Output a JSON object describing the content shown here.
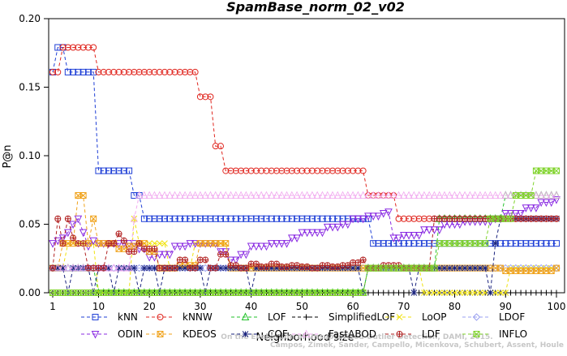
{
  "chart_data": {
    "type": "line",
    "title": "SpamBase_norm_02_v02",
    "xlabel": "Neighborhood size",
    "ylabel": "P@n",
    "xlim": [
      1,
      100
    ],
    "ylim": [
      0,
      0.2
    ],
    "xticks": [
      1,
      10,
      20,
      30,
      40,
      50,
      60,
      70,
      80,
      90,
      100
    ],
    "yticks": [
      0.0,
      0.05,
      0.1,
      0.15,
      0.2
    ],
    "ytick_labels": [
      "0.00",
      "0.05",
      "0.10",
      "0.15",
      "0.20"
    ],
    "grid": false,
    "legend_position": "bottom",
    "watermark": [
      "Campos, Zimek, Sander, Campello, Micenkova, Schubert, Assent, Houle",
      "On the Evaluation of Unsupervised Outlier Detection, DAMI, 2015."
    ],
    "series": [
      {
        "name": "kNN",
        "color": "#1f3fd6",
        "marker": "square",
        "points": [
          [
            1,
            0.161
          ],
          [
            2,
            0.179
          ],
          [
            3,
            0.179
          ],
          [
            4,
            0.161
          ],
          [
            8,
            0.161
          ],
          [
            9,
            0.161
          ],
          [
            10,
            0.089
          ],
          [
            16,
            0.089
          ],
          [
            17,
            0.071
          ],
          [
            18,
            0.071
          ],
          [
            19,
            0.054
          ],
          [
            63,
            0.054
          ],
          [
            64,
            0.036
          ],
          [
            100,
            0.036
          ]
        ]
      },
      {
        "name": "kNNW",
        "color": "#e0261f",
        "marker": "circle",
        "points": [
          [
            1,
            0.161
          ],
          [
            2,
            0.161
          ],
          [
            3,
            0.179
          ],
          [
            9,
            0.179
          ],
          [
            10,
            0.161
          ],
          [
            29,
            0.161
          ],
          [
            30,
            0.143
          ],
          [
            32,
            0.143
          ],
          [
            33,
            0.107
          ],
          [
            34,
            0.107
          ],
          [
            35,
            0.089
          ],
          [
            62,
            0.089
          ],
          [
            63,
            0.071
          ],
          [
            68,
            0.071
          ],
          [
            69,
            0.054
          ],
          [
            100,
            0.054
          ]
        ]
      },
      {
        "name": "LOF",
        "color": "#22c22a",
        "marker": "triangle-up",
        "points": [
          [
            1,
            0.018
          ],
          [
            9,
            0.018
          ],
          [
            10,
            0.0
          ],
          [
            62,
            0.0
          ],
          [
            63,
            0.018
          ],
          [
            76,
            0.018
          ],
          [
            77,
            0.054
          ],
          [
            89,
            0.054
          ],
          [
            90,
            0.071
          ],
          [
            100,
            0.071
          ]
        ]
      },
      {
        "name": "SimplifiedLOF",
        "color": "#000000",
        "marker": "plus",
        "points": [
          [
            1,
            0.0
          ],
          [
            100,
            0.0
          ]
        ]
      },
      {
        "name": "LoOP",
        "color": "#f0e20a",
        "marker": "x",
        "points": [
          [
            1,
            0.018
          ],
          [
            3,
            0.018
          ],
          [
            4,
            0.036
          ],
          [
            8,
            0.036
          ],
          [
            10,
            0.0
          ],
          [
            16,
            0.0
          ],
          [
            17,
            0.054
          ],
          [
            18,
            0.036
          ],
          [
            23,
            0.036
          ],
          [
            24,
            0.018
          ],
          [
            28,
            0.018
          ],
          [
            29,
            0.036
          ],
          [
            35,
            0.036
          ],
          [
            36,
            0.018
          ],
          [
            64,
            0.018
          ],
          [
            74,
            0.0
          ],
          [
            90,
            0.0
          ],
          [
            91,
            0.018
          ],
          [
            100,
            0.018
          ]
        ]
      },
      {
        "name": "LDOF",
        "color": "#9aa0f0",
        "marker": "diamond",
        "points": [
          [
            1,
            0.018
          ],
          [
            100,
            0.018
          ]
        ]
      },
      {
        "name": "ODIN",
        "color": "#8a2be2",
        "marker": "triangle-down",
        "points": [
          [
            1,
            0.036
          ],
          [
            2,
            0.038
          ],
          [
            3,
            0.04
          ],
          [
            4,
            0.044
          ],
          [
            5,
            0.05
          ],
          [
            6,
            0.054
          ],
          [
            7,
            0.044
          ],
          [
            8,
            0.034
          ],
          [
            9,
            0.038
          ],
          [
            10,
            0.036
          ],
          [
            15,
            0.036
          ],
          [
            18,
            0.032
          ],
          [
            20,
            0.026
          ],
          [
            22,
            0.028
          ],
          [
            25,
            0.034
          ],
          [
            28,
            0.036
          ],
          [
            30,
            0.036
          ],
          [
            32,
            0.036
          ],
          [
            34,
            0.03
          ],
          [
            36,
            0.024
          ],
          [
            37,
            0.024
          ],
          [
            38,
            0.028
          ],
          [
            40,
            0.034
          ],
          [
            44,
            0.036
          ],
          [
            48,
            0.04
          ],
          [
            50,
            0.044
          ],
          [
            55,
            0.048
          ],
          [
            58,
            0.05
          ],
          [
            60,
            0.054
          ],
          [
            63,
            0.056
          ],
          [
            66,
            0.058
          ],
          [
            67,
            0.059
          ],
          [
            68,
            0.04
          ],
          [
            70,
            0.042
          ],
          [
            74,
            0.046
          ],
          [
            78,
            0.05
          ],
          [
            82,
            0.052
          ],
          [
            88,
            0.054
          ],
          [
            90,
            0.058
          ],
          [
            94,
            0.062
          ],
          [
            97,
            0.066
          ],
          [
            100,
            0.068
          ]
        ]
      },
      {
        "name": "KDEOS",
        "color": "#f0a21a",
        "marker": "square-x",
        "points": [
          [
            1,
            0.018
          ],
          [
            3,
            0.036
          ],
          [
            5,
            0.036
          ],
          [
            6,
            0.071
          ],
          [
            7,
            0.071
          ],
          [
            8,
            0.036
          ],
          [
            9,
            0.054
          ],
          [
            10,
            0.036
          ],
          [
            12,
            0.036
          ],
          [
            14,
            0.032
          ],
          [
            16,
            0.034
          ],
          [
            18,
            0.036
          ],
          [
            20,
            0.03
          ],
          [
            22,
            0.018
          ],
          [
            24,
            0.018
          ],
          [
            26,
            0.02
          ],
          [
            30,
            0.036
          ],
          [
            34,
            0.036
          ],
          [
            36,
            0.018
          ],
          [
            60,
            0.018
          ],
          [
            63,
            0.018
          ],
          [
            70,
            0.018
          ],
          [
            80,
            0.018
          ],
          [
            86,
            0.018
          ],
          [
            90,
            0.016
          ],
          [
            100,
            0.018
          ]
        ]
      },
      {
        "name": "COF",
        "color": "#1a237e",
        "marker": "star",
        "points": [
          [
            1,
            0.018
          ],
          [
            3,
            0.018
          ],
          [
            4,
            0.0
          ],
          [
            5,
            0.018
          ],
          [
            8,
            0.018
          ],
          [
            9,
            0.0
          ],
          [
            10,
            0.018
          ],
          [
            12,
            0.018
          ],
          [
            13,
            0.0
          ],
          [
            14,
            0.018
          ],
          [
            17,
            0.018
          ],
          [
            18,
            0.0
          ],
          [
            19,
            0.018
          ],
          [
            21,
            0.018
          ],
          [
            22,
            0.0
          ],
          [
            23,
            0.018
          ],
          [
            30,
            0.018
          ],
          [
            31,
            0.0
          ],
          [
            32,
            0.018
          ],
          [
            38,
            0.018
          ],
          [
            40,
            0.0
          ],
          [
            41,
            0.018
          ],
          [
            60,
            0.018
          ],
          [
            62,
            0.0
          ],
          [
            63,
            0.018
          ],
          [
            70,
            0.018
          ],
          [
            72,
            0.0
          ],
          [
            73,
            0.018
          ],
          [
            86,
            0.018
          ],
          [
            87,
            0.0
          ],
          [
            88,
            0.036
          ],
          [
            89,
            0.054
          ],
          [
            100,
            0.054
          ]
        ]
      },
      {
        "name": "FastABOD",
        "color": "#f1a8ef",
        "marker": "triangle-open",
        "points": [
          [
            1,
            0.018
          ],
          [
            16,
            0.018
          ],
          [
            17,
            0.054
          ],
          [
            18,
            0.071
          ],
          [
            100,
            0.071
          ]
        ]
      },
      {
        "name": "LDF",
        "color": "#b22222",
        "marker": "circle-plus",
        "points": [
          [
            1,
            0.018
          ],
          [
            2,
            0.054
          ],
          [
            3,
            0.036
          ],
          [
            4,
            0.054
          ],
          [
            5,
            0.04
          ],
          [
            6,
            0.036
          ],
          [
            7,
            0.036
          ],
          [
            8,
            0.018
          ],
          [
            10,
            0.018
          ],
          [
            12,
            0.036
          ],
          [
            14,
            0.043
          ],
          [
            15,
            0.038
          ],
          [
            16,
            0.03
          ],
          [
            18,
            0.036
          ],
          [
            19,
            0.032
          ],
          [
            22,
            0.018
          ],
          [
            24,
            0.018
          ],
          [
            26,
            0.024
          ],
          [
            28,
            0.018
          ],
          [
            30,
            0.024
          ],
          [
            32,
            0.018
          ],
          [
            34,
            0.028
          ],
          [
            36,
            0.02
          ],
          [
            38,
            0.018
          ],
          [
            40,
            0.021
          ],
          [
            42,
            0.019
          ],
          [
            44,
            0.021
          ],
          [
            46,
            0.019
          ],
          [
            48,
            0.02
          ],
          [
            50,
            0.019
          ],
          [
            52,
            0.018
          ],
          [
            54,
            0.02
          ],
          [
            56,
            0.019
          ],
          [
            58,
            0.02
          ],
          [
            60,
            0.022
          ],
          [
            62,
            0.024
          ],
          [
            63,
            0.018
          ],
          [
            66,
            0.02
          ],
          [
            70,
            0.018
          ],
          [
            74,
            0.018
          ],
          [
            76,
            0.054
          ],
          [
            100,
            0.054
          ]
        ]
      },
      {
        "name": "INFLO",
        "color": "#7fd32a",
        "marker": "hourglass",
        "points": [
          [
            1,
            0.0
          ],
          [
            62,
            0.0
          ],
          [
            63,
            0.018
          ],
          [
            76,
            0.018
          ],
          [
            77,
            0.036
          ],
          [
            86,
            0.036
          ],
          [
            87,
            0.054
          ],
          [
            91,
            0.054
          ],
          [
            92,
            0.071
          ],
          [
            95,
            0.071
          ],
          [
            96,
            0.089
          ],
          [
            100,
            0.089
          ]
        ]
      }
    ]
  }
}
